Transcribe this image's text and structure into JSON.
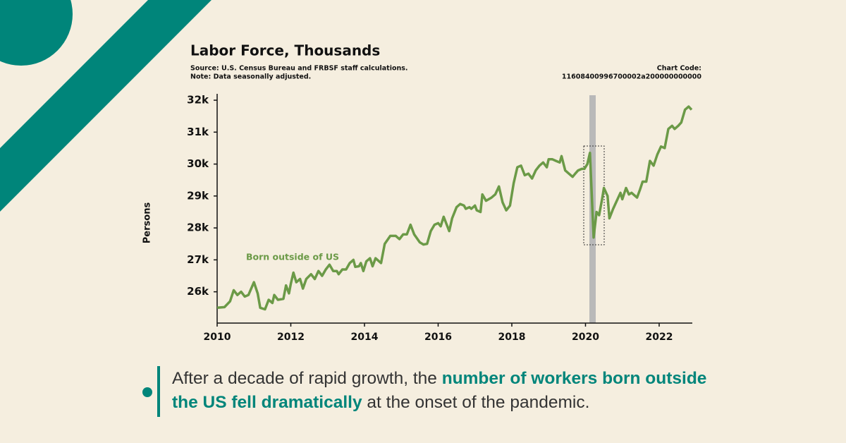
{
  "chart_data": {
    "type": "line",
    "title": "Labor Force, Thousands",
    "source": "Source: U.S. Census Bureau and FRBSF staff calculations.",
    "note": "Note: Data seasonally adjusted.",
    "chart_code_label": "Chart Code:",
    "chart_code": "11608400996700002a200000000000",
    "y_label": "Persons",
    "xlim": [
      2010,
      2022.9
    ],
    "xticks": [
      2010,
      2012,
      2014,
      2016,
      2018,
      2020,
      2022
    ],
    "ylim": [
      25020,
      32200
    ],
    "yticks": [
      {
        "value": 26000,
        "label": "26k"
      },
      {
        "value": 27000,
        "label": "27k"
      },
      {
        "value": 28000,
        "label": "28k"
      },
      {
        "value": 29000,
        "label": "29k"
      },
      {
        "value": 30000,
        "label": "30k"
      },
      {
        "value": 31000,
        "label": "31k"
      },
      {
        "value": 32000,
        "label": "32k"
      }
    ],
    "x": [
      2010.0,
      2010.2,
      2010.35,
      2010.45,
      2010.55,
      2010.65,
      2010.75,
      2010.85,
      2011.0,
      2011.1,
      2011.17,
      2011.3,
      2011.4,
      2011.5,
      2011.55,
      2011.65,
      2011.8,
      2011.87,
      2011.95,
      2012.0,
      2012.07,
      2012.15,
      2012.25,
      2012.33,
      2012.42,
      2012.55,
      2012.65,
      2012.75,
      2012.85,
      2012.95,
      2013.05,
      2013.15,
      2013.25,
      2013.3,
      2013.4,
      2013.5,
      2013.6,
      2013.7,
      2013.75,
      2013.85,
      2013.9,
      2013.97,
      2014.05,
      2014.15,
      2014.22,
      2014.3,
      2014.45,
      2014.55,
      2014.7,
      2014.85,
      2014.95,
      2015.05,
      2015.15,
      2015.25,
      2015.35,
      2015.5,
      2015.6,
      2015.7,
      2015.8,
      2015.9,
      2016.0,
      2016.07,
      2016.15,
      2016.3,
      2016.38,
      2016.5,
      2016.6,
      2016.7,
      2016.75,
      2016.85,
      2016.9,
      2017.0,
      2017.05,
      2017.15,
      2017.2,
      2017.3,
      2017.45,
      2017.55,
      2017.65,
      2017.75,
      2017.85,
      2017.95,
      2018.05,
      2018.15,
      2018.25,
      2018.35,
      2018.45,
      2018.55,
      2018.65,
      2018.75,
      2018.85,
      2018.95,
      2019.0,
      2019.1,
      2019.2,
      2019.3,
      2019.35,
      2019.45,
      2019.55,
      2019.65,
      2019.72,
      2019.8,
      2019.9,
      2019.97,
      2020.05,
      2020.12,
      2020.22,
      2020.3,
      2020.37,
      2020.45,
      2020.5,
      2020.6,
      2020.65,
      2020.75,
      2020.85,
      2020.95,
      2021.0,
      2021.1,
      2021.18,
      2021.25,
      2021.4,
      2021.48,
      2021.55,
      2021.65,
      2021.75,
      2021.85,
      2021.95,
      2022.05,
      2022.15,
      2022.25,
      2022.35,
      2022.42,
      2022.52,
      2022.6,
      2022.7,
      2022.8,
      2022.88
    ],
    "series": [
      {
        "name": "Born outside of US",
        "color": "#6b9a47",
        "values": [
          25500,
          25520,
          25700,
          26050,
          25900,
          26000,
          25850,
          25900,
          26300,
          25950,
          25500,
          25450,
          25750,
          25650,
          25900,
          25750,
          25780,
          26200,
          25950,
          26250,
          26600,
          26300,
          26400,
          26100,
          26400,
          26550,
          26400,
          26650,
          26500,
          26700,
          26850,
          26650,
          26650,
          26550,
          26700,
          26700,
          26900,
          27000,
          26780,
          26800,
          26900,
          26650,
          26950,
          27050,
          26800,
          27050,
          26900,
          27500,
          27750,
          27750,
          27650,
          27800,
          27800,
          28100,
          27800,
          27550,
          27480,
          27500,
          27900,
          28100,
          28150,
          28050,
          28350,
          27900,
          28300,
          28650,
          28750,
          28700,
          28600,
          28650,
          28600,
          28700,
          28550,
          28500,
          29050,
          28850,
          28950,
          29050,
          29300,
          28800,
          28550,
          28700,
          29400,
          29900,
          29950,
          29650,
          29700,
          29550,
          29800,
          29950,
          30050,
          29900,
          30150,
          30150,
          30100,
          30050,
          30250,
          29800,
          29700,
          29600,
          29700,
          29800,
          29850,
          29850,
          30000,
          30350,
          27700,
          28500,
          28400,
          28900,
          29250,
          29000,
          28300,
          28600,
          28850,
          29100,
          28900,
          29250,
          29050,
          29100,
          28950,
          29200,
          29450,
          29450,
          30100,
          29950,
          30300,
          30550,
          30500,
          31100,
          31200,
          31100,
          31200,
          31300,
          31700,
          31800,
          31700
        ]
      }
    ],
    "takeaway": [
      "After a decade of rapid growth, the ",
      "number of workers born outside the US fell dramatically",
      " at the onset of the pandemic."
    ]
  }
}
